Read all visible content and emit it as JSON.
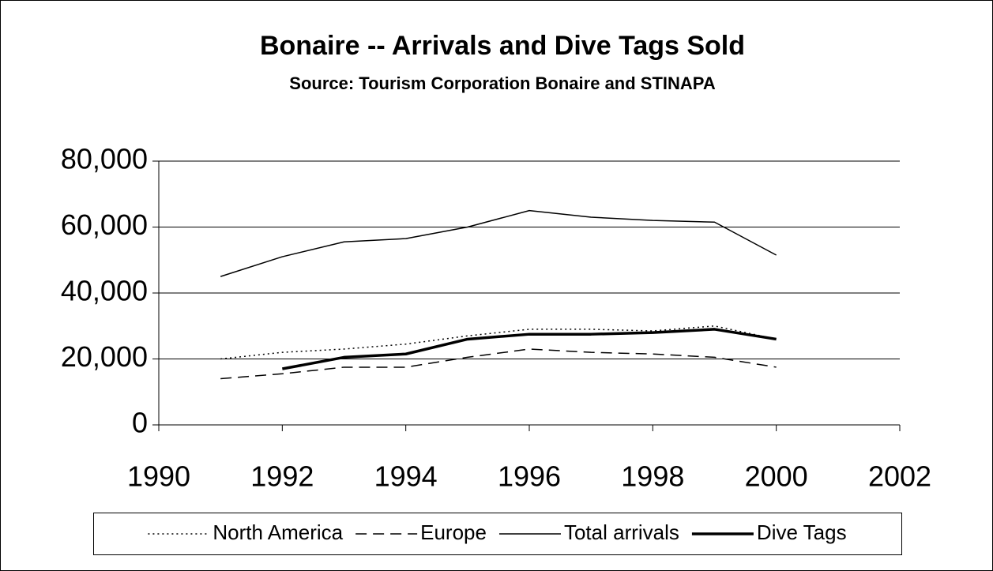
{
  "chart_data": {
    "type": "line",
    "title": "Bonaire -- Arrivals and Dive Tags Sold",
    "subtitle": "Source: Tourism Corporation Bonaire and STINAPA",
    "x": [
      1991,
      1992,
      1993,
      1994,
      1995,
      1996,
      1997,
      1998,
      1999,
      2000
    ],
    "series": [
      {
        "name": "North America",
        "color": "#000000",
        "dash": "dotted",
        "width": 1.5,
        "values": [
          20000,
          22000,
          23000,
          24500,
          27000,
          29000,
          29000,
          28500,
          30000,
          26000
        ]
      },
      {
        "name": "Europe",
        "color": "#000000",
        "dash": "dashed",
        "width": 1.5,
        "values": [
          14000,
          15500,
          17500,
          17500,
          20500,
          23000,
          22000,
          21500,
          20500,
          17500
        ]
      },
      {
        "name": "Total arrivals",
        "color": "#000000",
        "dash": "solid",
        "width": 1.5,
        "values": [
          45000,
          51000,
          55500,
          56500,
          60000,
          65000,
          63000,
          62000,
          61500,
          51500
        ]
      },
      {
        "name": "Dive Tags",
        "color": "#000000",
        "dash": "solid",
        "width": 3.5,
        "values": [
          null,
          17000,
          20500,
          21500,
          26000,
          27500,
          27500,
          28000,
          29000,
          26000
        ]
      }
    ],
    "xlim": [
      1990,
      2002
    ],
    "xticks": [
      1990,
      1992,
      1994,
      1996,
      1998,
      2000,
      2002
    ],
    "ylim": [
      0,
      80000
    ],
    "yticks": [
      0,
      {
        "value": 20000,
        "label": "20,000"
      },
      {
        "value": 40000,
        "label": "40,000"
      },
      {
        "value": 60000,
        "label": "60,000"
      },
      {
        "value": 80000,
        "label": "80,000"
      }
    ],
    "grid": true,
    "legend": "bottom"
  }
}
